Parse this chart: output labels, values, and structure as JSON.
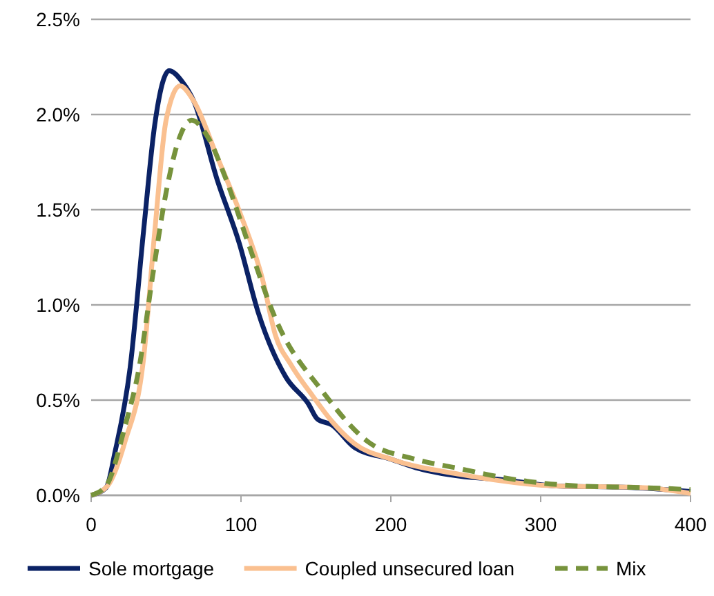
{
  "chart_data": {
    "type": "line",
    "xlim": [
      0,
      400
    ],
    "xticks": [
      0,
      100,
      200,
      300,
      400
    ],
    "ylim": [
      0,
      2.5
    ],
    "yticks": [
      {
        "value": 0,
        "label": "0.0%"
      },
      {
        "value": 0.5,
        "label": "0.5%"
      },
      {
        "value": 1,
        "label": "1.0%"
      },
      {
        "value": 1.5,
        "label": "1.5%"
      },
      {
        "value": 2,
        "label": "2.0%"
      },
      {
        "value": 2.5,
        "label": "2.5%"
      }
    ],
    "grid": "y",
    "legend": "bottom",
    "marker": "none",
    "series": [
      {
        "name": "Sole mortgage",
        "color": "#0b2265",
        "line_style": "solid",
        "x": [
          0,
          10,
          16,
          26,
          35,
          42.5,
          52,
          61,
          68.5,
          84,
          99,
          111.5,
          130,
          145,
          151,
          160.5,
          176,
          200,
          219,
          246,
          277,
          308,
          363,
          400
        ],
        "values": [
          0,
          0.04,
          0.23,
          0.67,
          1.39,
          1.95,
          2.23,
          2.17,
          2.07,
          1.66,
          1.32,
          0.96,
          0.62,
          0.48,
          0.4,
          0.37,
          0.25,
          0.19,
          0.14,
          0.1,
          0.08,
          0.05,
          0.04,
          0.02
        ]
      },
      {
        "name": "Coupled unsecured loan",
        "color": "#fac090",
        "line_style": "solid",
        "x": [
          0,
          11,
          22.5,
          35,
          42.5,
          50,
          59.3,
          68.5,
          84,
          99,
          114.5,
          123,
          133,
          148,
          160.5,
          176,
          200,
          246,
          308,
          369,
          400
        ],
        "values": [
          0,
          0.05,
          0.28,
          0.72,
          1.39,
          1.97,
          2.15,
          2.07,
          1.78,
          1.49,
          1.13,
          0.84,
          0.69,
          0.52,
          0.39,
          0.27,
          0.19,
          0.11,
          0.05,
          0.04,
          0.01
        ]
      },
      {
        "name": "Mix",
        "color": "#77933c",
        "line_style": "dashed",
        "x": [
          0,
          10,
          22.5,
          32,
          41,
          50,
          59,
          67,
          78,
          90,
          105,
          124,
          154,
          185,
          216,
          246,
          277,
          323,
          369,
          400
        ],
        "values": [
          0,
          0.05,
          0.36,
          0.67,
          1.15,
          1.59,
          1.88,
          1.97,
          1.88,
          1.66,
          1.32,
          0.91,
          0.55,
          0.28,
          0.19,
          0.14,
          0.09,
          0.05,
          0.04,
          0.03
        ]
      }
    ]
  }
}
